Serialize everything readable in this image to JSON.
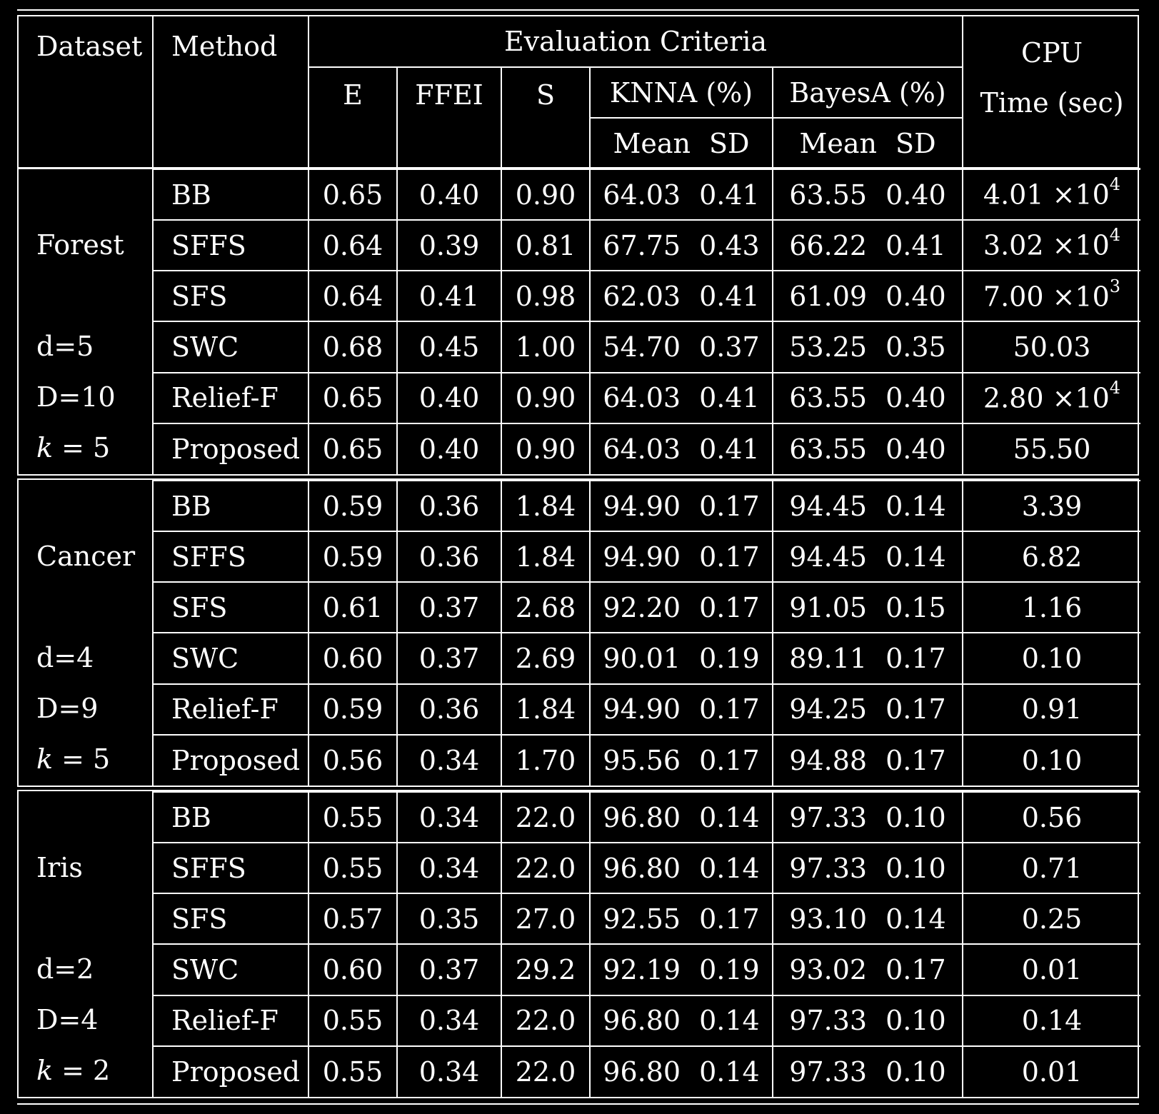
{
  "header": {
    "dataset": "Dataset",
    "method": "Method",
    "evaluation_criteria": "Evaluation Criteria",
    "cpu_line1": "CPU",
    "cpu_line2": "Time (sec)",
    "e": "E",
    "ffei": "FFEI",
    "s": "S",
    "knna": "KNNA (%)",
    "bayesa": "BayesA (%)",
    "mean": "Mean",
    "sd": "SD"
  },
  "datasets": [
    {
      "name": "Forest",
      "d": "d=5",
      "D": "D=10",
      "k_var": "k",
      "k_rest": " = 5",
      "rows": [
        {
          "method": "BB",
          "e": "0.65",
          "ffei": "0.40",
          "s": "0.90",
          "knn_mean": "64.03",
          "knn_sd": "0.41",
          "bayes_mean": "63.55",
          "bayes_sd": "0.40",
          "cpu_base": "4.01 ×10",
          "cpu_exp": "4"
        },
        {
          "method": "SFFS",
          "e": "0.64",
          "ffei": "0.39",
          "s": "0.81",
          "knn_mean": "67.75",
          "knn_sd": "0.43",
          "bayes_mean": "66.22",
          "bayes_sd": "0.41",
          "cpu_base": "3.02 ×10",
          "cpu_exp": "4"
        },
        {
          "method": "SFS",
          "e": "0.64",
          "ffei": "0.41",
          "s": "0.98",
          "knn_mean": "62.03",
          "knn_sd": "0.41",
          "bayes_mean": "61.09",
          "bayes_sd": "0.40",
          "cpu_base": "7.00 ×10",
          "cpu_exp": "3"
        },
        {
          "method": "SWC",
          "e": "0.68",
          "ffei": "0.45",
          "s": "1.00",
          "knn_mean": "54.70",
          "knn_sd": "0.37",
          "bayes_mean": "53.25",
          "bayes_sd": "0.35",
          "cpu_base": "50.03",
          "cpu_exp": ""
        },
        {
          "method": "Relief-F",
          "e": "0.65",
          "ffei": "0.40",
          "s": "0.90",
          "knn_mean": "64.03",
          "knn_sd": "0.41",
          "bayes_mean": "63.55",
          "bayes_sd": "0.40",
          "cpu_base": "2.80 ×10",
          "cpu_exp": "4"
        },
        {
          "method": "Proposed",
          "e": "0.65",
          "ffei": "0.40",
          "s": "0.90",
          "knn_mean": "64.03",
          "knn_sd": "0.41",
          "bayes_mean": "63.55",
          "bayes_sd": "0.40",
          "cpu_base": "55.50",
          "cpu_exp": ""
        }
      ]
    },
    {
      "name": "Cancer",
      "d": "d=4",
      "D": "D=9",
      "k_var": "k",
      "k_rest": " = 5",
      "rows": [
        {
          "method": "BB",
          "e": "0.59",
          "ffei": "0.36",
          "s": "1.84",
          "knn_mean": "94.90",
          "knn_sd": "0.17",
          "bayes_mean": "94.45",
          "bayes_sd": "0.14",
          "cpu_base": "3.39",
          "cpu_exp": ""
        },
        {
          "method": "SFFS",
          "e": "0.59",
          "ffei": "0.36",
          "s": "1.84",
          "knn_mean": "94.90",
          "knn_sd": "0.17",
          "bayes_mean": "94.45",
          "bayes_sd": "0.14",
          "cpu_base": "6.82",
          "cpu_exp": ""
        },
        {
          "method": "SFS",
          "e": "0.61",
          "ffei": "0.37",
          "s": "2.68",
          "knn_mean": "92.20",
          "knn_sd": "0.17",
          "bayes_mean": "91.05",
          "bayes_sd": "0.15",
          "cpu_base": "1.16",
          "cpu_exp": ""
        },
        {
          "method": "SWC",
          "e": "0.60",
          "ffei": "0.37",
          "s": "2.69",
          "knn_mean": "90.01",
          "knn_sd": "0.19",
          "bayes_mean": "89.11",
          "bayes_sd": "0.17",
          "cpu_base": "0.10",
          "cpu_exp": ""
        },
        {
          "method": "Relief-F",
          "e": "0.59",
          "ffei": "0.36",
          "s": "1.84",
          "knn_mean": "94.90",
          "knn_sd": "0.17",
          "bayes_mean": "94.25",
          "bayes_sd": "0.17",
          "cpu_base": "0.91",
          "cpu_exp": ""
        },
        {
          "method": "Proposed",
          "e": "0.56",
          "ffei": "0.34",
          "s": "1.70",
          "knn_mean": "95.56",
          "knn_sd": "0.17",
          "bayes_mean": "94.88",
          "bayes_sd": "0.17",
          "cpu_base": "0.10",
          "cpu_exp": ""
        }
      ]
    },
    {
      "name": "Iris",
      "d": "d=2",
      "D": "D=4",
      "k_var": "k",
      "k_rest": " = 2",
      "rows": [
        {
          "method": "BB",
          "e": "0.55",
          "ffei": "0.34",
          "s": "22.0",
          "knn_mean": "96.80",
          "knn_sd": "0.14",
          "bayes_mean": "97.33",
          "bayes_sd": "0.10",
          "cpu_base": "0.56",
          "cpu_exp": ""
        },
        {
          "method": "SFFS",
          "e": "0.55",
          "ffei": "0.34",
          "s": "22.0",
          "knn_mean": "96.80",
          "knn_sd": "0.14",
          "bayes_mean": "97.33",
          "bayes_sd": "0.10",
          "cpu_base": "0.71",
          "cpu_exp": ""
        },
        {
          "method": "SFS",
          "e": "0.57",
          "ffei": "0.35",
          "s": "27.0",
          "knn_mean": "92.55",
          "knn_sd": "0.17",
          "bayes_mean": "93.10",
          "bayes_sd": "0.14",
          "cpu_base": "0.25",
          "cpu_exp": ""
        },
        {
          "method": "SWC",
          "e": "0.60",
          "ffei": "0.37",
          "s": "29.2",
          "knn_mean": "92.19",
          "knn_sd": "0.19",
          "bayes_mean": "93.02",
          "bayes_sd": "0.17",
          "cpu_base": "0.01",
          "cpu_exp": ""
        },
        {
          "method": "Relief-F",
          "e": "0.55",
          "ffei": "0.34",
          "s": "22.0",
          "knn_mean": "96.80",
          "knn_sd": "0.14",
          "bayes_mean": "97.33",
          "bayes_sd": "0.10",
          "cpu_base": "0.14",
          "cpu_exp": ""
        },
        {
          "method": "Proposed",
          "e": "0.55",
          "ffei": "0.34",
          "s": "22.0",
          "knn_mean": "96.80",
          "knn_sd": "0.14",
          "bayes_mean": "97.33",
          "bayes_sd": "0.10",
          "cpu_base": "0.01",
          "cpu_exp": ""
        }
      ]
    }
  ]
}
